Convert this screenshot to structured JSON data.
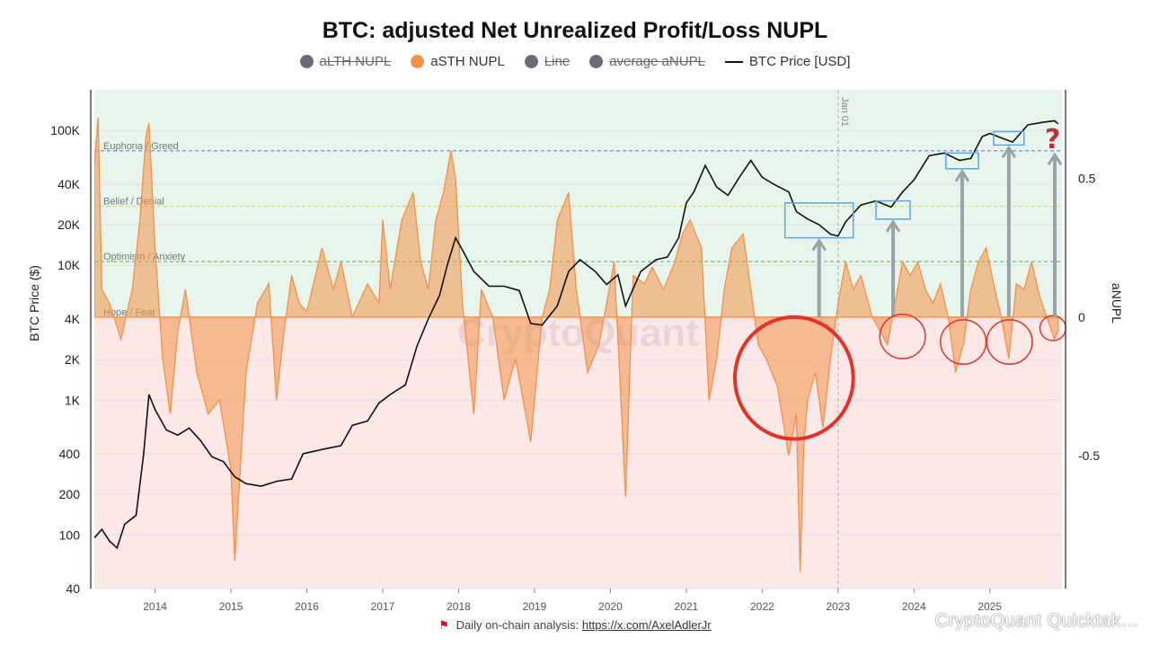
{
  "title": "BTC: adjusted Net Unrealized Profit/Loss NUPL",
  "legend": [
    {
      "label": "aLTH NUPL",
      "color": "#6b6b78",
      "kind": "dot",
      "hidden": true
    },
    {
      "label": "aSTH NUPL",
      "color": "#f0924a",
      "kind": "dot",
      "hidden": false
    },
    {
      "label": "Line",
      "color": "#6b6b78",
      "kind": "dot",
      "hidden": true
    },
    {
      "label": "average aNUPL",
      "color": "#6b6b78",
      "kind": "dot",
      "hidden": true
    },
    {
      "label": "BTC Price [USD]",
      "color": "#111111",
      "kind": "line",
      "hidden": false
    }
  ],
  "footer": {
    "text": "Daily on-chain analysis:",
    "link": "https://x.com/AxelAdlerJr"
  },
  "watermark": "CryptoQuant",
  "watermark_small": "CryptoQuant Quicktak…",
  "colors": {
    "positive_bg": "#e8f5ec",
    "negative_bg": "#fce9e7",
    "area": "#f0924a",
    "price": "#111111",
    "circle": "#e8302a",
    "box": "#5aa9e6",
    "arrow": "#9aa3a8",
    "question": "#c0303a"
  },
  "chart_data": {
    "type": "area+line",
    "x_axis": {
      "ticks": [
        "2014",
        "2015",
        "2016",
        "2017",
        "2018",
        "2019",
        "2020",
        "2021",
        "2022",
        "2023",
        "2024",
        "2025"
      ],
      "range": [
        2013.2,
        2025.95
      ]
    },
    "left_axis": {
      "label": "BTC Price ($)",
      "scale": "log",
      "ticks": [
        "100K",
        "40K",
        "20K",
        "10K",
        "4K",
        "2K",
        "1K",
        "400",
        "200",
        "100",
        "40"
      ],
      "tick_values": [
        100000,
        40000,
        20000,
        10000,
        4000,
        2000,
        1000,
        400,
        200,
        100,
        40
      ],
      "range": [
        40,
        200000
      ]
    },
    "right_axis": {
      "label": "aNUPL",
      "ticks": [
        "0.5",
        "0",
        "-0.5"
      ],
      "tick_values": [
        0.5,
        0,
        -0.5
      ],
      "range": [
        -0.98,
        0.82
      ]
    },
    "zones": [
      {
        "label": "Euphoria / Greed",
        "value": 0.6,
        "color": "#5c6bc0"
      },
      {
        "label": "Belief / Denial",
        "value": 0.4,
        "color": "#e2d45c"
      },
      {
        "label": "Optimism / Anxiety",
        "value": 0.2,
        "color": "#4caf50"
      },
      {
        "label": "Hope / Fear",
        "value": 0.0,
        "color": "#bbbbbb"
      }
    ],
    "vline": {
      "label": "Jan 01",
      "x": 2023.0
    },
    "asth_nupl": {
      "x": [
        2013.2,
        2013.25,
        2013.3,
        2013.4,
        2013.55,
        2013.7,
        2013.8,
        2013.88,
        2013.92,
        2014.0,
        2014.1,
        2014.2,
        2014.3,
        2014.4,
        2014.55,
        2014.7,
        2014.85,
        2015.0,
        2015.05,
        2015.2,
        2015.35,
        2015.5,
        2015.6,
        2015.7,
        2015.8,
        2015.9,
        2016.0,
        2016.2,
        2016.35,
        2016.45,
        2016.6,
        2016.8,
        2016.95,
        2017.0,
        2017.1,
        2017.25,
        2017.4,
        2017.5,
        2017.6,
        2017.7,
        2017.8,
        2017.9,
        2017.96,
        2018.05,
        2018.2,
        2018.3,
        2018.45,
        2018.6,
        2018.75,
        2018.85,
        2018.95,
        2019.1,
        2019.2,
        2019.3,
        2019.45,
        2019.55,
        2019.7,
        2019.85,
        2019.95,
        2020.05,
        2020.2,
        2020.3,
        2020.45,
        2020.55,
        2020.7,
        2020.85,
        2020.95,
        2021.05,
        2021.2,
        2021.3,
        2021.4,
        2021.5,
        2021.6,
        2021.75,
        2021.85,
        2021.95,
        2022.05,
        2022.2,
        2022.35,
        2022.45,
        2022.5,
        2022.55,
        2022.6,
        2022.7,
        2022.8,
        2022.9,
        2023.0,
        2023.1,
        2023.2,
        2023.3,
        2023.45,
        2023.55,
        2023.65,
        2023.75,
        2023.85,
        2023.95,
        2024.05,
        2024.15,
        2024.25,
        2024.35,
        2024.45,
        2024.55,
        2024.65,
        2024.75,
        2024.85,
        2024.95,
        2025.05,
        2025.15,
        2025.25,
        2025.35,
        2025.45,
        2025.55,
        2025.65,
        2025.75,
        2025.85,
        2025.9
      ],
      "y": [
        0.55,
        0.72,
        0.1,
        0.05,
        -0.08,
        0.1,
        0.35,
        0.65,
        0.7,
        0.25,
        -0.15,
        -0.35,
        -0.05,
        0.1,
        -0.2,
        -0.35,
        -0.3,
        -0.55,
        -0.88,
        -0.2,
        0.05,
        0.12,
        -0.3,
        -0.05,
        0.15,
        0.05,
        0.02,
        0.25,
        0.1,
        0.2,
        0.0,
        0.12,
        0.05,
        0.35,
        0.1,
        0.35,
        0.45,
        0.2,
        0.1,
        0.35,
        0.45,
        0.6,
        0.5,
        0.05,
        -0.35,
        0.1,
        0.0,
        -0.3,
        -0.15,
        -0.3,
        -0.45,
        0.0,
        0.1,
        0.35,
        0.45,
        0.1,
        -0.2,
        -0.1,
        0.05,
        0.2,
        -0.65,
        0.15,
        0.12,
        0.18,
        0.1,
        0.2,
        0.3,
        0.35,
        0.25,
        -0.3,
        -0.15,
        0.1,
        0.25,
        0.3,
        0.1,
        -0.1,
        -0.15,
        -0.25,
        -0.5,
        -0.35,
        -0.92,
        -0.45,
        -0.3,
        -0.2,
        -0.4,
        -0.15,
        0.05,
        0.2,
        0.1,
        0.15,
        0.0,
        -0.05,
        -0.1,
        0.05,
        0.2,
        0.15,
        0.2,
        0.1,
        0.05,
        0.12,
        0.0,
        -0.2,
        -0.1,
        0.1,
        0.2,
        0.25,
        0.12,
        0.0,
        -0.15,
        0.12,
        0.1,
        0.2,
        0.08,
        0.0,
        -0.08,
        -0.05
      ]
    },
    "btc_price": {
      "x": [
        2013.2,
        2013.3,
        2013.4,
        2013.5,
        2013.6,
        2013.75,
        2013.85,
        2013.92,
        2014.0,
        2014.15,
        2014.3,
        2014.45,
        2014.6,
        2014.75,
        2014.9,
        2015.05,
        2015.2,
        2015.4,
        2015.6,
        2015.8,
        2015.95,
        2016.2,
        2016.45,
        2016.6,
        2016.8,
        2016.95,
        2017.1,
        2017.3,
        2017.45,
        2017.6,
        2017.75,
        2017.85,
        2017.96,
        2018.05,
        2018.2,
        2018.4,
        2018.6,
        2018.8,
        2018.95,
        2019.1,
        2019.3,
        2019.45,
        2019.6,
        2019.8,
        2019.95,
        2020.1,
        2020.2,
        2020.4,
        2020.6,
        2020.75,
        2020.9,
        2021.0,
        2021.1,
        2021.25,
        2021.4,
        2021.55,
        2021.7,
        2021.85,
        2022.0,
        2022.15,
        2022.35,
        2022.45,
        2022.6,
        2022.75,
        2022.9,
        2023.0,
        2023.1,
        2023.3,
        2023.5,
        2023.7,
        2023.85,
        2024.0,
        2024.2,
        2024.4,
        2024.6,
        2024.75,
        2024.9,
        2025.0,
        2025.2,
        2025.3,
        2025.5,
        2025.7,
        2025.85,
        2025.9
      ],
      "y": [
        95,
        110,
        90,
        80,
        120,
        140,
        400,
        1100,
        850,
        600,
        550,
        620,
        500,
        380,
        350,
        270,
        240,
        230,
        250,
        260,
        400,
        430,
        460,
        650,
        700,
        950,
        1100,
        1300,
        2500,
        4000,
        6000,
        10000,
        16000,
        13000,
        9000,
        7000,
        7000,
        6500,
        3700,
        3600,
        5000,
        9000,
        11000,
        9000,
        7200,
        8500,
        5000,
        9000,
        11000,
        11500,
        16000,
        29000,
        35000,
        55000,
        38000,
        33000,
        45000,
        60000,
        45000,
        40000,
        35000,
        25000,
        22000,
        20000,
        17000,
        16500,
        21000,
        28000,
        30000,
        27000,
        35000,
        43000,
        65000,
        68000,
        60000,
        62000,
        90000,
        95000,
        86000,
        82000,
        110000,
        115000,
        118000,
        112000
      ]
    },
    "annotations": [
      {
        "kind": "box",
        "label": "",
        "x": [
          2022.3,
          2023.2
        ],
        "y": [
          16000,
          29000
        ]
      },
      {
        "kind": "box",
        "label": "",
        "x": [
          2023.5,
          2023.95
        ],
        "y": [
          22000,
          30000
        ]
      },
      {
        "kind": "box",
        "label": "",
        "x": [
          2024.42,
          2024.85
        ],
        "y": [
          52000,
          68000
        ]
      },
      {
        "kind": "box",
        "label": "",
        "x": [
          2025.05,
          2025.45
        ],
        "y": [
          78000,
          98000
        ]
      },
      {
        "kind": "circle",
        "x": 2022.42,
        "y": -0.22,
        "r_x": 0.78,
        "r_y": 0.22
      },
      {
        "kind": "circle",
        "x": 2023.85,
        "y": -0.07,
        "r_x": 0.3,
        "r_y": 0.08
      },
      {
        "kind": "circle",
        "x": 2024.65,
        "y": -0.09,
        "r_x": 0.3,
        "r_y": 0.08
      },
      {
        "kind": "circle",
        "x": 2025.26,
        "y": -0.09,
        "r_x": 0.3,
        "r_y": 0.08
      },
      {
        "kind": "circle",
        "x": 2025.83,
        "y": -0.04,
        "r_x": 0.17,
        "r_y": 0.045
      },
      {
        "kind": "question",
        "label": "?",
        "x": 2025.82,
        "y": 100000
      }
    ]
  }
}
